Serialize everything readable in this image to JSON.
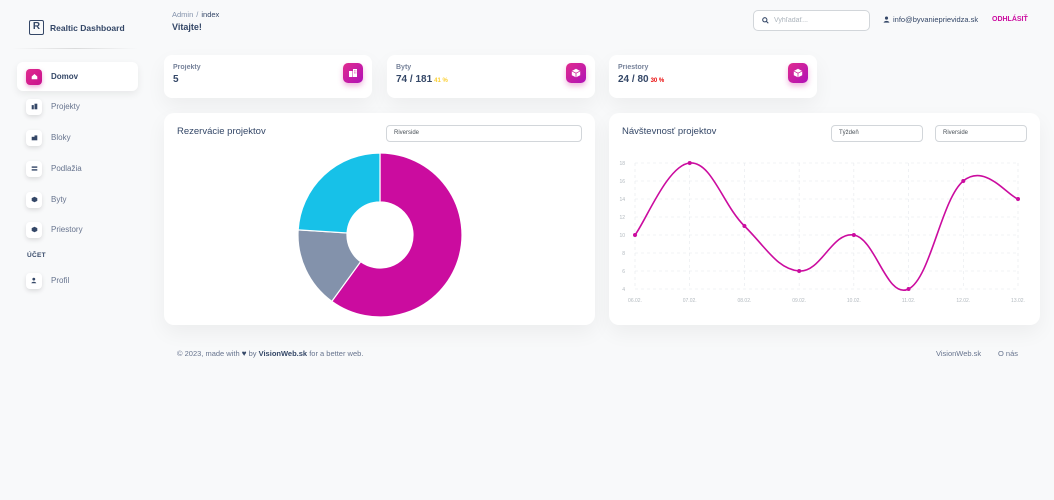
{
  "brand": {
    "name": "Realtic Dashboard",
    "letter": "R"
  },
  "sidebar": {
    "items": [
      {
        "label": "Domov",
        "icon": "home-icon",
        "active": true
      },
      {
        "label": "Projekty",
        "icon": "building-icon"
      },
      {
        "label": "Bloky",
        "icon": "blocks-icon"
      },
      {
        "label": "Podlažia",
        "icon": "floors-icon"
      },
      {
        "label": "Byty",
        "icon": "box-icon"
      },
      {
        "label": "Priestory",
        "icon": "box-icon"
      }
    ],
    "section_label": "ÚČET",
    "account_items": [
      {
        "label": "Profil",
        "icon": "user-icon"
      }
    ]
  },
  "header": {
    "breadcrumb": {
      "root": "Admin",
      "separator": "/",
      "current": "index"
    },
    "title": "Vitajte!",
    "search": {
      "placeholder": "Vyhľadať...",
      "value": "",
      "icon": "search-icon"
    },
    "user_email": "info@byvanieprievidza.sk",
    "logout_label": "ODHLÁSIŤ"
  },
  "stats": [
    {
      "label": "Projekty",
      "value": "5",
      "percent": "",
      "icon": "building-icon"
    },
    {
      "label": "Byty",
      "value": "74 / 181",
      "percent": "41 %",
      "percent_color": "#fbcf33",
      "icon": "box-icon"
    },
    {
      "label": "Priestory",
      "value": "24 / 80",
      "percent": "30 %",
      "percent_color": "#ea0606",
      "icon": "box-icon"
    }
  ],
  "reservations": {
    "title": "Rezervácie projektov",
    "select_value": "Riverside"
  },
  "visits": {
    "title": "Návštevnosť projektov",
    "period_select": "Týždeň",
    "project_select": "Riverside"
  },
  "chart_data": [
    {
      "type": "pie",
      "donut": true,
      "values": [
        60,
        16,
        24
      ],
      "colors": [
        "#cb0c9f",
        "#8392ab",
        "#17c1e8"
      ]
    },
    {
      "type": "line",
      "categories": [
        "06.02.",
        "07.02.",
        "08.02.",
        "09.02.",
        "10.02.",
        "11.02.",
        "12.02.",
        "13.02."
      ],
      "series": [
        {
          "values": [
            10,
            18,
            11,
            6,
            10,
            4,
            16,
            14
          ],
          "color": "#cb0c9f"
        }
      ],
      "ylim": [
        4,
        18
      ],
      "yticks": [
        4,
        6,
        8,
        10,
        12,
        14,
        16,
        18
      ],
      "grid": true
    }
  ],
  "footer": {
    "prefix": "© 2023, made with",
    "by": "by",
    "company": "VisionWeb.sk",
    "suffix": "for a better web.",
    "links": [
      "VisionWeb.sk",
      "O nás"
    ]
  }
}
